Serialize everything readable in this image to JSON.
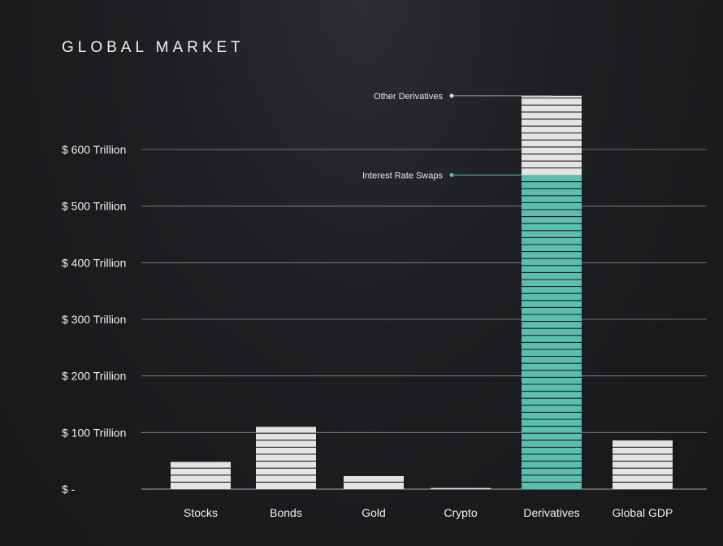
{
  "title": "GLOBAL MARKET",
  "chart_data": {
    "type": "bar",
    "title": "GLOBAL MARKET",
    "categories": [
      "Stocks",
      "Bonds",
      "Gold",
      "Crypto",
      "Derivatives",
      "Global GDP"
    ],
    "values": [
      48,
      110,
      23,
      2,
      695,
      86
    ],
    "stacked": {
      "category": "Derivatives",
      "segments": [
        {
          "name": "Interest Rate Swaps",
          "value": 555,
          "color": "#5bbfb0"
        },
        {
          "name": "Other Derivatives",
          "value": 140,
          "color": "#e4e4e4"
        }
      ]
    },
    "yticks": [
      {
        "value": 0,
        "label": "$ -"
      },
      {
        "value": 100,
        "label": "$ 100 Trillion"
      },
      {
        "value": 200,
        "label": "$ 200 Trillion"
      },
      {
        "value": 300,
        "label": "$ 300 Trillion"
      },
      {
        "value": 400,
        "label": "$ 400 Trillion"
      },
      {
        "value": 500,
        "label": "$ 500 Trillion"
      },
      {
        "value": 600,
        "label": "$ 600 Trillion"
      }
    ],
    "ylim": [
      0,
      700
    ],
    "xlabel": "",
    "ylabel": "",
    "grid": true,
    "colors": {
      "bar": "#e4e4e4",
      "highlight": "#5bbfb0",
      "gridline": "#8a8b8e",
      "stripe": "#1c1d20"
    }
  }
}
